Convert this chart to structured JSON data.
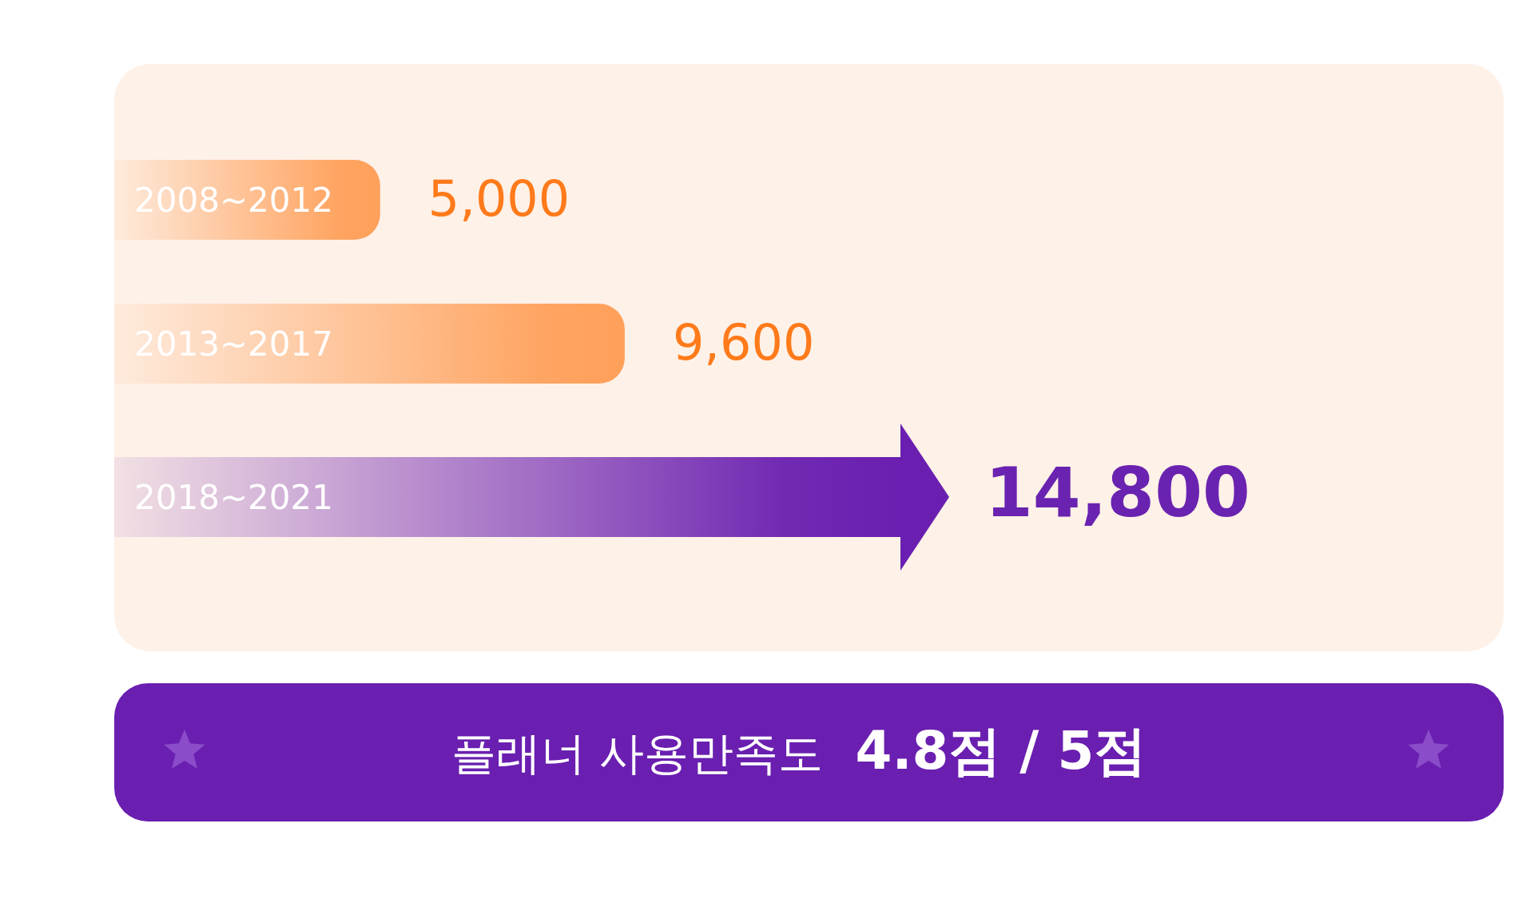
{
  "chart_data": {
    "type": "bar",
    "orientation": "horizontal",
    "categories": [
      "2008~2012",
      "2013~2017",
      "2018~2021"
    ],
    "values": [
      5000,
      9600,
      14800
    ],
    "colors": [
      "#ffa05a",
      "#ffa05a",
      "#6a1fb0"
    ],
    "value_labels": [
      "5,000",
      "9,600",
      "14,800"
    ],
    "annotations": [
      "플래너 사용만족도",
      "4.8점 / 5점"
    ]
  }
}
